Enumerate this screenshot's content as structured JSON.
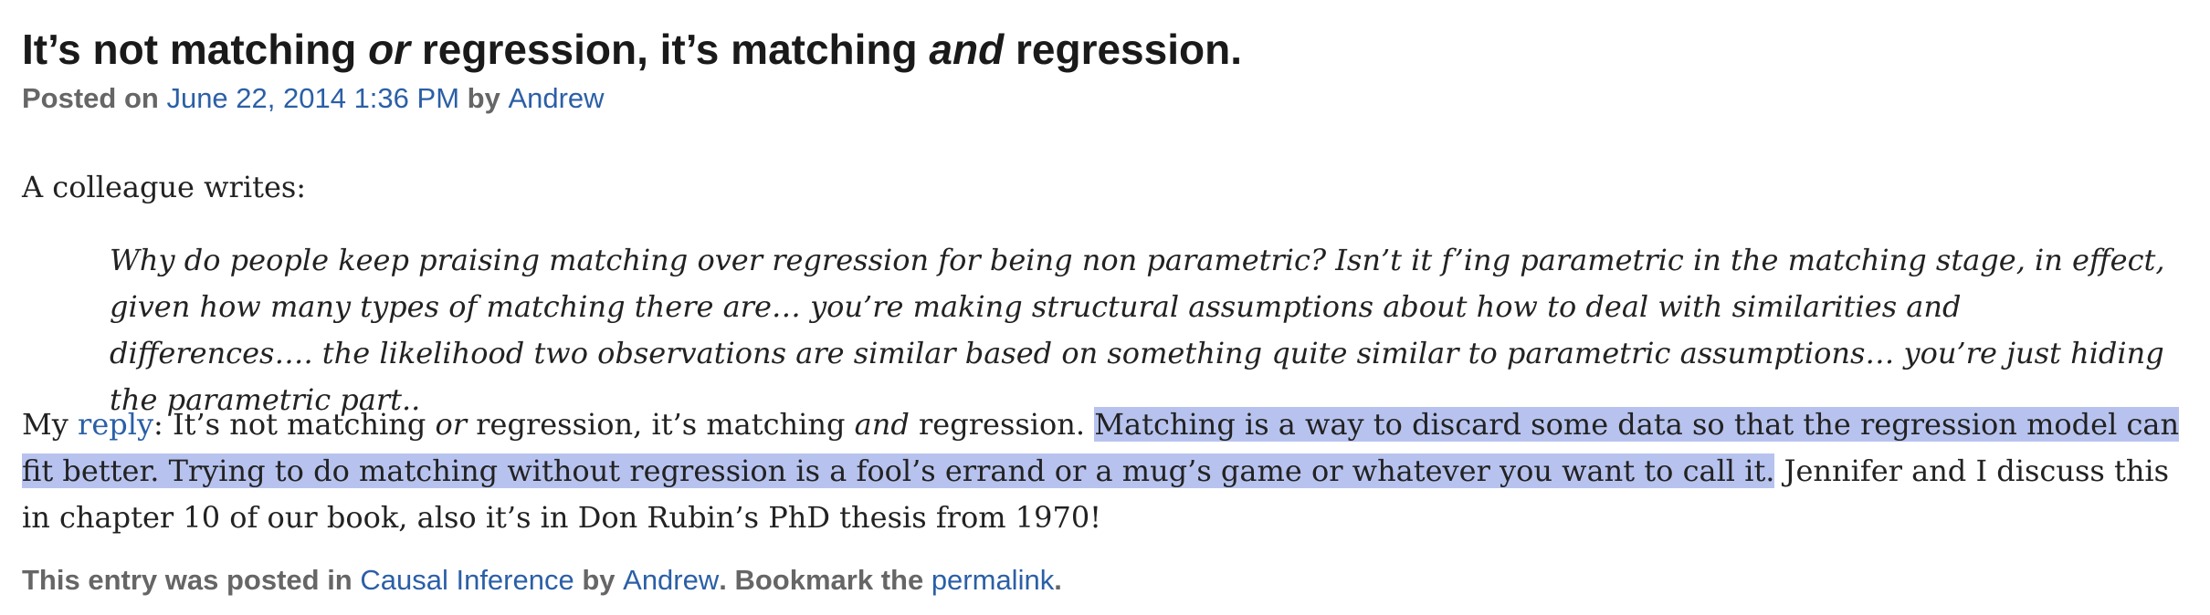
{
  "post": {
    "title_parts": [
      "It’s not matching ",
      "or",
      " regression, it’s matching ",
      "and",
      " regression."
    ],
    "meta": {
      "posted_on": "Posted on ",
      "date": "June 22, 2014 1:36 PM",
      "by": " by ",
      "author": "Andrew"
    },
    "intro": "A colleague writes:",
    "quote": "Why do people keep praising matching over regression for being non parametric? Isn’t it f’ing parametric in the matching stage, in effect, given how many types of matching there are… you’re making structural assumptions about how to deal with similarities and differences…. the likelihood two observations are similar based on something quite similar to parametric assumptions… you’re just hiding the parametric part..",
    "reply": {
      "prefix": "My ",
      "link": "reply",
      "text1": ": It’s not matching ",
      "em1": "or",
      "text2": " regression, it’s matching ",
      "em2": "and",
      "text3": " regression. ",
      "highlighted": "Matching is a way to discard some data so that the regression model can fit better. Trying to do matching without regression is a fool’s errand or a mug’s game or whatever you want to call it.",
      "rest": " Jennifer and I discuss this in chapter 10 of our book, also it’s in Don Rubin’s PhD thesis from 1970!"
    },
    "footer": {
      "text1": "This entry was posted in ",
      "category": "Causal Inference",
      "text2": " by ",
      "author": "Andrew",
      "text3": ". Bookmark the ",
      "permalink": "permalink",
      "text4": "."
    }
  },
  "colors": {
    "link": "#2b5fa7",
    "selection_highlight": "#b7c3ee",
    "meta_text": "#666666"
  }
}
